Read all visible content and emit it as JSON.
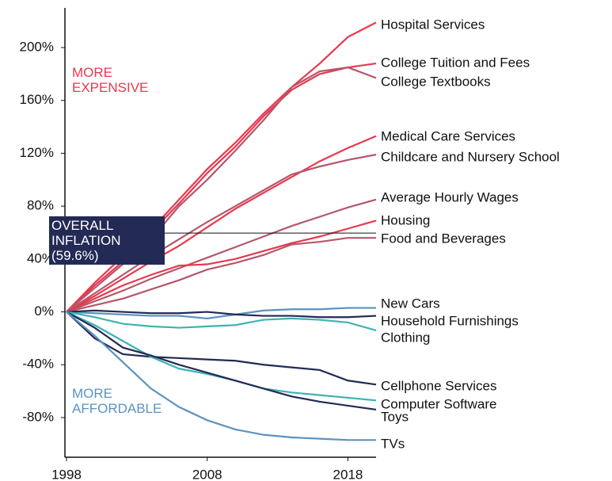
{
  "chart_data": {
    "type": "line",
    "x": [
      1998,
      2000,
      2002,
      2004,
      2006,
      2008,
      2010,
      2012,
      2014,
      2016,
      2018,
      2020
    ],
    "xlim": [
      1998,
      2020
    ],
    "xticks": [
      1998,
      2008,
      2018
    ],
    "ylim": [
      -110,
      230
    ],
    "yticks": [
      {
        "value": 200,
        "label": "200%"
      },
      {
        "value": 160,
        "label": "160%"
      },
      {
        "value": 120,
        "label": "120%"
      },
      {
        "value": 80,
        "label": "80%"
      },
      {
        "value": 40,
        "label": "40%"
      },
      {
        "value": 0,
        "label": "0%"
      },
      {
        "value": -40,
        "label": "-40%"
      },
      {
        "value": -80,
        "label": "-80%"
      }
    ],
    "grid": false,
    "annotations": {
      "expensive": "MORE EXPENSIVE",
      "affordable": "MORE AFFORDABLE"
    },
    "reference": {
      "label": "OVERALL INFLATION (59.6%)",
      "value": 59.6,
      "color": "#232a55"
    },
    "series": [
      {
        "name": "Hospital Services",
        "color": "#e8384f",
        "values": [
          0,
          22,
          42,
          62,
          85,
          108,
          128,
          150,
          170,
          188,
          208,
          219
        ]
      },
      {
        "name": "College Tuition and Fees",
        "color": "#e8384f",
        "values": [
          0,
          20,
          38,
          60,
          82,
          105,
          125,
          148,
          168,
          180,
          185,
          188
        ]
      },
      {
        "name": "College Textbooks",
        "color": "#b5576a",
        "values": [
          0,
          18,
          36,
          55,
          80,
          100,
          122,
          145,
          170,
          182,
          185,
          177
        ]
      },
      {
        "name": "Medical Care Services",
        "color": "#e8384f",
        "values": [
          0,
          12,
          25,
          38,
          50,
          64,
          78,
          90,
          102,
          114,
          124,
          133
        ]
      },
      {
        "name": "Childcare and Nursery School",
        "color": "#b5576a",
        "values": [
          0,
          14,
          28,
          42,
          55,
          68,
          80,
          92,
          104,
          110,
          115,
          119
        ]
      },
      {
        "name": "Average Hourly Wages",
        "color": "#b5576a",
        "values": [
          0,
          8,
          16,
          25,
          33,
          41,
          49,
          57,
          65,
          72,
          79,
          85
        ]
      },
      {
        "name": "Housing",
        "color": "#e8384f",
        "values": [
          0,
          10,
          20,
          28,
          35,
          36,
          40,
          46,
          52,
          57,
          63,
          69
        ]
      },
      {
        "name": "Food and Beverages",
        "color": "#b5576a",
        "values": [
          0,
          5,
          10,
          17,
          24,
          32,
          37,
          43,
          51,
          53,
          56,
          56
        ]
      },
      {
        "name": "New Cars",
        "color": "#5b93c0",
        "values": [
          0,
          -1,
          -2,
          -3,
          -3,
          -5,
          -2,
          1,
          2,
          2,
          3,
          3
        ]
      },
      {
        "name": "Household Furnishings",
        "color": "#232a55",
        "values": [
          0,
          1,
          0,
          -1,
          -1,
          0,
          -2,
          -3,
          -3,
          -4,
          -4,
          -3
        ]
      },
      {
        "name": "Clothing",
        "color": "#3eb3b3",
        "values": [
          0,
          -4,
          -9,
          -11,
          -12,
          -11,
          -10,
          -6,
          -5,
          -6,
          -8,
          -14
        ]
      },
      {
        "name": "Cellphone Services",
        "color": "#232a55",
        "values": [
          0,
          -20,
          -32,
          -34,
          -35,
          -36,
          -37,
          -40,
          -42,
          -44,
          -52,
          -55
        ]
      },
      {
        "name": "Computer Software",
        "color": "#3eb3b3",
        "values": [
          0,
          -10,
          -22,
          -34,
          -43,
          -47,
          -52,
          -58,
          -61,
          -63,
          -65,
          -67
        ]
      },
      {
        "name": "Toys",
        "color": "#232a55",
        "values": [
          0,
          -12,
          -27,
          -33,
          -40,
          -46,
          -52,
          -58,
          -64,
          -68,
          -71,
          -74
        ]
      },
      {
        "name": "TVs",
        "color": "#5b93c0",
        "values": [
          0,
          -18,
          -38,
          -58,
          -72,
          -82,
          -89,
          -93,
          -95,
          -96,
          -97,
          -97
        ]
      }
    ]
  }
}
